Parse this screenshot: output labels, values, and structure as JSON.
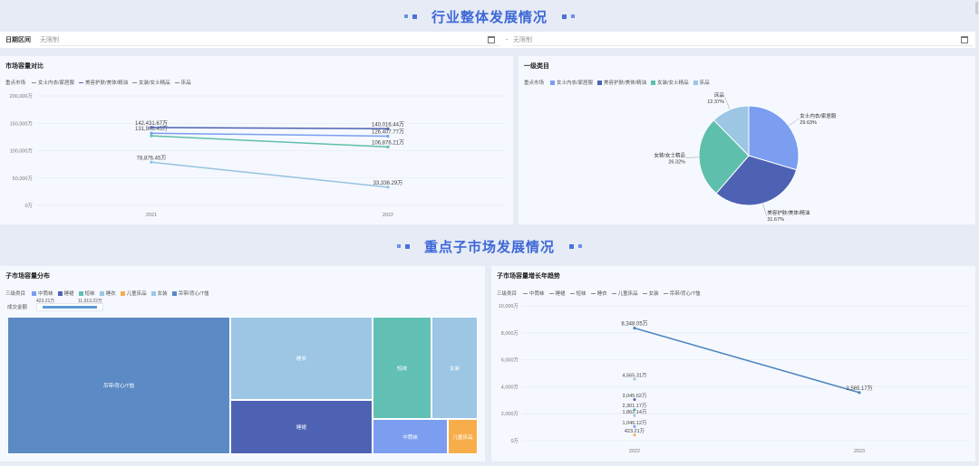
{
  "section1": {
    "title": "行业整体发展情况"
  },
  "section2": {
    "title": "重点子市场发展情况"
  },
  "date_filter": {
    "label": "日期区间",
    "start_placeholder": "无限制",
    "separator": "-",
    "end_placeholder": "无限制"
  },
  "panel_market": {
    "title": "市场容量对比",
    "legend_title": "重点市场",
    "legend": [
      "女士内衣/家居服",
      "美容护肤/美体/精油",
      "女装/女士精品",
      "床品"
    ]
  },
  "panel_category": {
    "title": "一级类目",
    "legend_title": "重点市场",
    "legend": [
      "女士内衣/家居服",
      "美容护肤/美体/精油",
      "女装/女士精品",
      "床品"
    ]
  },
  "panel_treemap": {
    "title": "子市场容量分布",
    "legend_title": "三级类目",
    "legend": [
      "中筒袜",
      "睡裙",
      "短袜",
      "睡衣",
      "儿童床品",
      "女装",
      "吊带/背心/T恤"
    ],
    "slider_label": "成交金额",
    "slider_min": "423.21万",
    "slider_max": "11,913.22万"
  },
  "panel_growth": {
    "title": "子市场容量增长年趋势",
    "legend_title": "三级类目",
    "legend": [
      "中筒袜",
      "睡裙",
      "短袜",
      "睡衣",
      "儿童床品",
      "女装",
      "吊带/背心/T恤"
    ]
  },
  "chart_data": [
    {
      "type": "line",
      "title": "市场容量对比",
      "x": [
        "2021",
        "2022"
      ],
      "yticks": [
        "0万",
        "50,000万",
        "100,000万",
        "150,000万",
        "200,000万"
      ],
      "ylim": [
        0,
        200000
      ],
      "series": [
        {
          "name": "女士内衣/家居服",
          "values": [
            131906.45,
            126407.77
          ],
          "labels": [
            "131,906.45万",
            "126,407.77万"
          ],
          "color": "#7b9ef0"
        },
        {
          "name": "美容护肤/美体/精油",
          "values": [
            142431.67,
            140016.44
          ],
          "labels": [
            "142,431.67万",
            "140,016.44万"
          ],
          "color": "#4e62b4"
        },
        {
          "name": "女装/女士精品",
          "values": [
            127000,
            106876.21
          ],
          "labels": [
            "",
            "106,876.21万"
          ],
          "color": "#5fbfad"
        },
        {
          "name": "床品",
          "values": [
            78876.45,
            33336.29
          ],
          "labels": [
            "78,876.45万",
            "33,336.29万"
          ],
          "color": "#96c3e0"
        }
      ],
      "grid": true
    },
    {
      "type": "pie",
      "title": "一级类目",
      "slices": [
        {
          "name": "女士内衣/家居服",
          "pct": "29.63%",
          "value": 29.63,
          "color": "#7b9ef0"
        },
        {
          "name": "美容护肤/美体/精油",
          "pct": "31.67%",
          "value": 31.67,
          "color": "#4e62b4"
        },
        {
          "name": "女装/女士精品",
          "pct": "26.32%",
          "value": 26.32,
          "color": "#5fbfad"
        },
        {
          "name": "床品",
          "pct": "12.37%",
          "value": 12.37,
          "color": "#9cc6e4"
        }
      ]
    },
    {
      "type": "treemap",
      "title": "子市场容量分布",
      "cells": [
        {
          "name": "吊带/背心/T恤",
          "color": "#5b8ac4"
        },
        {
          "name": "睡衣",
          "color": "#9cc6e4"
        },
        {
          "name": "睡裙",
          "color": "#4e62b4"
        },
        {
          "name": "短袜",
          "color": "#62c0b4"
        },
        {
          "name": "女装",
          "color": "#9cc6e4"
        },
        {
          "name": "中筒袜",
          "color": "#7b9ef0"
        },
        {
          "name": "儿童床品",
          "color": "#f7ae4a"
        }
      ]
    },
    {
      "type": "line",
      "title": "子市场容量增长年趋势",
      "x": [
        "2022",
        "2023"
      ],
      "yticks": [
        "0万",
        "2,000万",
        "4,000万",
        "6,000万",
        "8,000万",
        "10,000万"
      ],
      "ylim": [
        0,
        10000
      ],
      "series": [
        {
          "name": "吊带/背心/T恤",
          "values": [
            8348.05,
            3565.17
          ],
          "labels": [
            "8,348.05万",
            "3,565.17万"
          ],
          "color": "#4f86bd"
        }
      ],
      "points_2022": [
        {
          "value": 4565.31,
          "label": "4,565.31万",
          "color": "#9cc6e4"
        },
        {
          "value": 3045.62,
          "label": "3,045.62万",
          "color": "#4e62b4"
        },
        {
          "value": 2301.17,
          "label": "2,301.17万",
          "color": "#62c0b4"
        },
        {
          "value": 1862.14,
          "label": "1,862.14万",
          "color": "#9cc6e4"
        },
        {
          "value": 1046.12,
          "label": "1,046.12万",
          "color": "#7b9ef0"
        },
        {
          "value": 423.21,
          "label": "423.21万",
          "color": "#f7ae4a"
        }
      ]
    }
  ]
}
